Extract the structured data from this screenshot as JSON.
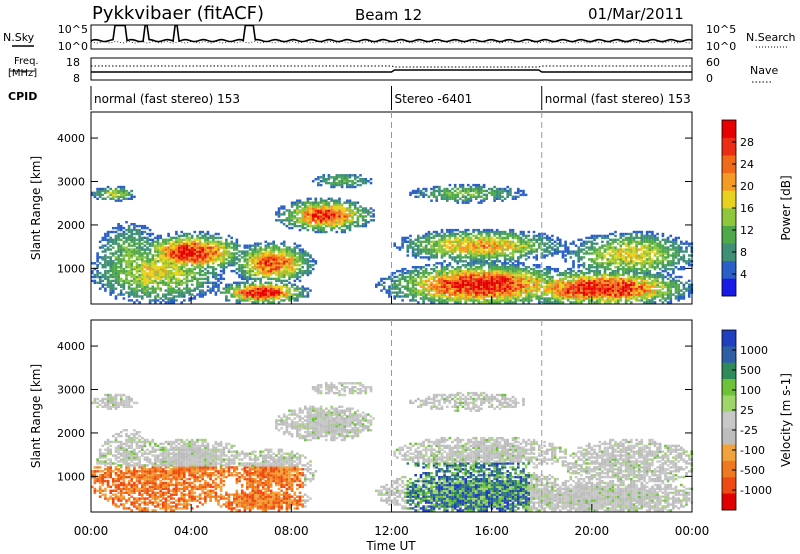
{
  "header": {
    "station": "Pykkvibaer (fitACF)",
    "beam": "Beam 12",
    "date": "01/Mar/2011"
  },
  "left_labels": {
    "nsky": "N.Sky",
    "freq_line1": "Freq.",
    "freq_line2": "[MHz]",
    "cpid": "CPID"
  },
  "right_labels": {
    "nsearch": "N.Search",
    "nave": "Nave"
  },
  "noise_axis": {
    "left_top": "10^5",
    "left_bottom": "10^0",
    "right_top": "10^5",
    "right_bottom": "10^0"
  },
  "freq_axis": {
    "left_top": "18",
    "left_bottom": "8",
    "right_top": "60",
    "right_bottom": "0"
  },
  "cpid_segments": [
    {
      "label": "normal (fast stereo) 153",
      "start_h": 0,
      "end_h": 12
    },
    {
      "label": "Stereo -6401",
      "start_h": 12,
      "end_h": 18
    },
    {
      "label": "normal (fast stereo) 153",
      "start_h": 18,
      "end_h": 24
    }
  ],
  "chart_data": [
    {
      "type": "heatmap",
      "xlabel": "Time UT",
      "ylabel": "Slant Range [km]",
      "xlim": [
        0,
        24
      ],
      "ylim": [
        180,
        4600
      ],
      "x_ticks": [
        "00:00",
        "04:00",
        "08:00",
        "12:00",
        "16:00",
        "20:00",
        "00:00"
      ],
      "y_ticks": [
        1000,
        2000,
        3000,
        4000
      ],
      "colorbar": {
        "label": "Power [dB]",
        "ticks": [
          4,
          8,
          12,
          16,
          20,
          24,
          28
        ],
        "colors": [
          "#1a1ae6",
          "#2a5fc8",
          "#3e8f76",
          "#4fa84a",
          "#8ec63c",
          "#e8d21e",
          "#f59a22",
          "#f06a1a",
          "#ea2d14",
          "#e60000"
        ]
      },
      "dashed_vertical_lines_h": [
        12,
        18
      ]
    },
    {
      "type": "heatmap",
      "xlabel": "Time UT",
      "ylabel": "Slant Range [km]",
      "xlim": [
        0,
        24
      ],
      "ylim": [
        180,
        4600
      ],
      "x_ticks": [
        "00:00",
        "04:00",
        "08:00",
        "12:00",
        "16:00",
        "20:00",
        "00:00"
      ],
      "y_ticks": [
        1000,
        2000,
        3000,
        4000
      ],
      "colorbar": {
        "label": "Velocity [m s-1]",
        "ticks": [
          1000,
          500,
          100,
          25,
          -25,
          -100,
          -500,
          -1000
        ],
        "colors": [
          "#1f3fbf",
          "#2e5fa6",
          "#2f8a5a",
          "#6ec23a",
          "#9fd66a",
          "#c8c8c8",
          "#bdbdbd",
          "#f2a23a",
          "#f0781e",
          "#ee4a12",
          "#e00000"
        ]
      },
      "dashed_vertical_lines_h": [
        12,
        18
      ]
    }
  ]
}
